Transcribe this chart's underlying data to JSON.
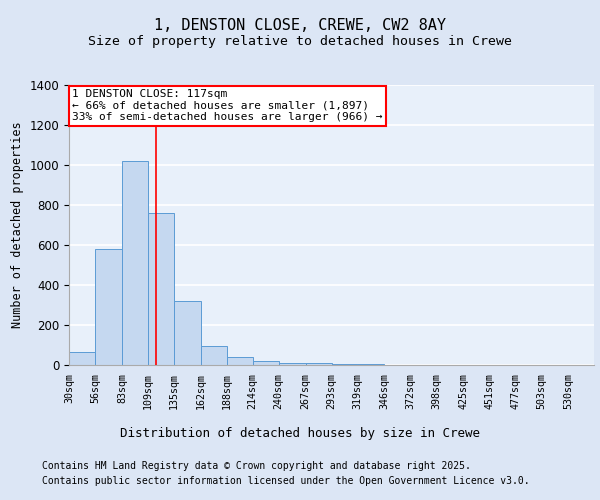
{
  "title": "1, DENSTON CLOSE, CREWE, CW2 8AY",
  "subtitle": "Size of property relative to detached houses in Crewe",
  "xlabel": "Distribution of detached houses by size in Crewe",
  "ylabel": "Number of detached properties",
  "bin_edges": [
    30,
    56,
    83,
    109,
    135,
    162,
    188,
    214,
    240,
    267,
    293,
    319,
    346,
    372,
    398,
    425,
    451,
    477,
    503,
    530,
    556
  ],
  "bar_heights": [
    65,
    580,
    1020,
    760,
    320,
    95,
    38,
    18,
    10,
    8,
    5,
    3,
    2,
    1,
    1,
    1,
    1,
    1,
    1,
    1
  ],
  "bar_color": "#c5d8f0",
  "bar_edge_color": "#5b9bd5",
  "vline_x": 117,
  "vline_color": "red",
  "annotation_text": "1 DENSTON CLOSE: 117sqm\n← 66% of detached houses are smaller (1,897)\n33% of semi-detached houses are larger (966) →",
  "annotation_box_color": "white",
  "annotation_box_edge": "red",
  "ylim": [
    0,
    1400
  ],
  "yticks": [
    0,
    200,
    400,
    600,
    800,
    1000,
    1200,
    1400
  ],
  "bg_color": "#dce6f5",
  "plot_bg_color": "#e8f0fa",
  "grid_color": "white",
  "footer_line1": "Contains HM Land Registry data © Crown copyright and database right 2025.",
  "footer_line2": "Contains public sector information licensed under the Open Government Licence v3.0.",
  "title_fontsize": 11,
  "subtitle_fontsize": 9.5,
  "annotation_fontsize": 8,
  "xlabel_fontsize": 9,
  "ylabel_fontsize": 8.5,
  "footer_fontsize": 7
}
